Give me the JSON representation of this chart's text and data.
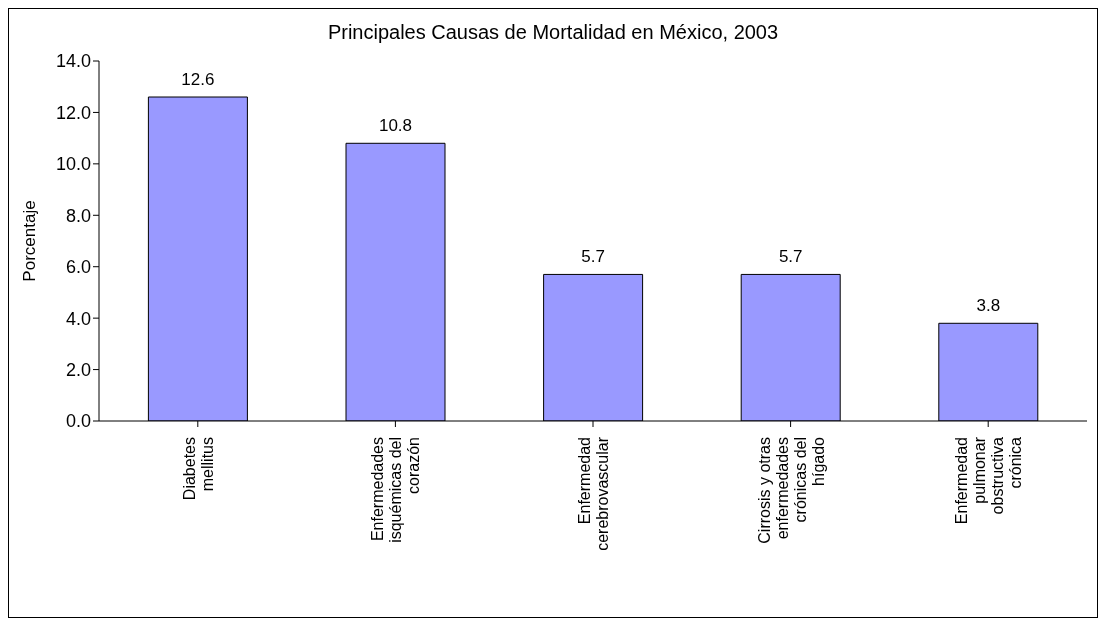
{
  "chart_data": {
    "type": "bar",
    "title": "Principales Causas de Mortalidad en México, 2003",
    "ylabel": "Porcentaje",
    "categories": [
      "Diabetes mellitus",
      "Enfermedades isquémicas del corazón",
      "Enfermedad cerebrovascular",
      "Cirrosis y otras enfermedades crónicas del hígado",
      "Enfermedad pulmonar obstructiva crónica"
    ],
    "values": [
      12.6,
      10.8,
      5.7,
      5.7,
      3.8
    ],
    "color": "#9999ff",
    "ylim": [
      0,
      14
    ],
    "yticks": [
      {
        "value": 0,
        "label": "0.0"
      },
      {
        "value": 2,
        "label": "2.0"
      },
      {
        "value": 4,
        "label": "4.0"
      },
      {
        "value": 6,
        "label": "6.0"
      },
      {
        "value": 8,
        "label": "8.0"
      },
      {
        "value": 10,
        "label": "10.0"
      },
      {
        "value": 12,
        "label": "12.0"
      },
      {
        "value": 14,
        "label": "14.0"
      }
    ],
    "grid": false,
    "legend": false,
    "data_labels": true
  }
}
